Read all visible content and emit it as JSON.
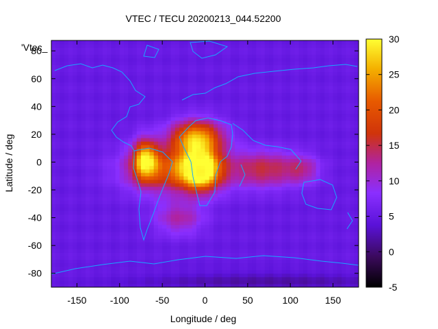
{
  "chart_data": {
    "type": "heatmap",
    "title": "VTEC / TECU 20200213_044.52200",
    "legend_label": "'Vtec_",
    "xlabel": "Longitude / deg",
    "ylabel": "Latitude / deg",
    "xlim": [
      -180,
      180
    ],
    "ylim": [
      -90,
      87.5
    ],
    "x_ticks": [
      -150,
      -100,
      -50,
      0,
      50,
      100,
      150
    ],
    "y_ticks": [
      -80,
      -60,
      -40,
      -20,
      0,
      20,
      40,
      60,
      80
    ],
    "colorbar": {
      "range": [
        -5,
        30
      ],
      "ticks": [
        -5,
        0,
        5,
        10,
        15,
        20,
        25,
        30
      ],
      "colors": [
        "#000000",
        "#3a0a5a",
        "#5a12d8",
        "#8a2fff",
        "#b023a0",
        "#d0340a",
        "#e85a00",
        "#f4b000",
        "#ffff33"
      ]
    },
    "background_value": 5,
    "features": [
      {
        "name": "Africa equatorial peak",
        "lon": -5,
        "lat": -5,
        "value": 29
      },
      {
        "name": "North Africa / Arabia crest",
        "lon": -10,
        "lat": 18,
        "value": 25
      },
      {
        "name": "South America peak",
        "lon": -70,
        "lat": 2,
        "value": 24
      },
      {
        "name": "Central equatorial band",
        "lon": -35,
        "lat": -5,
        "value": 20
      },
      {
        "name": "Indian Ocean extension",
        "lon": 70,
        "lat": -5,
        "value": 15
      },
      {
        "name": "Southeast Asia tail",
        "lon": 115,
        "lat": -5,
        "value": 11
      },
      {
        "name": "South Atlantic trough",
        "lon": -30,
        "lat": -40,
        "value": 12
      },
      {
        "name": "Antarctic low",
        "lon": 70,
        "lat": -85,
        "value": 2
      }
    ]
  }
}
